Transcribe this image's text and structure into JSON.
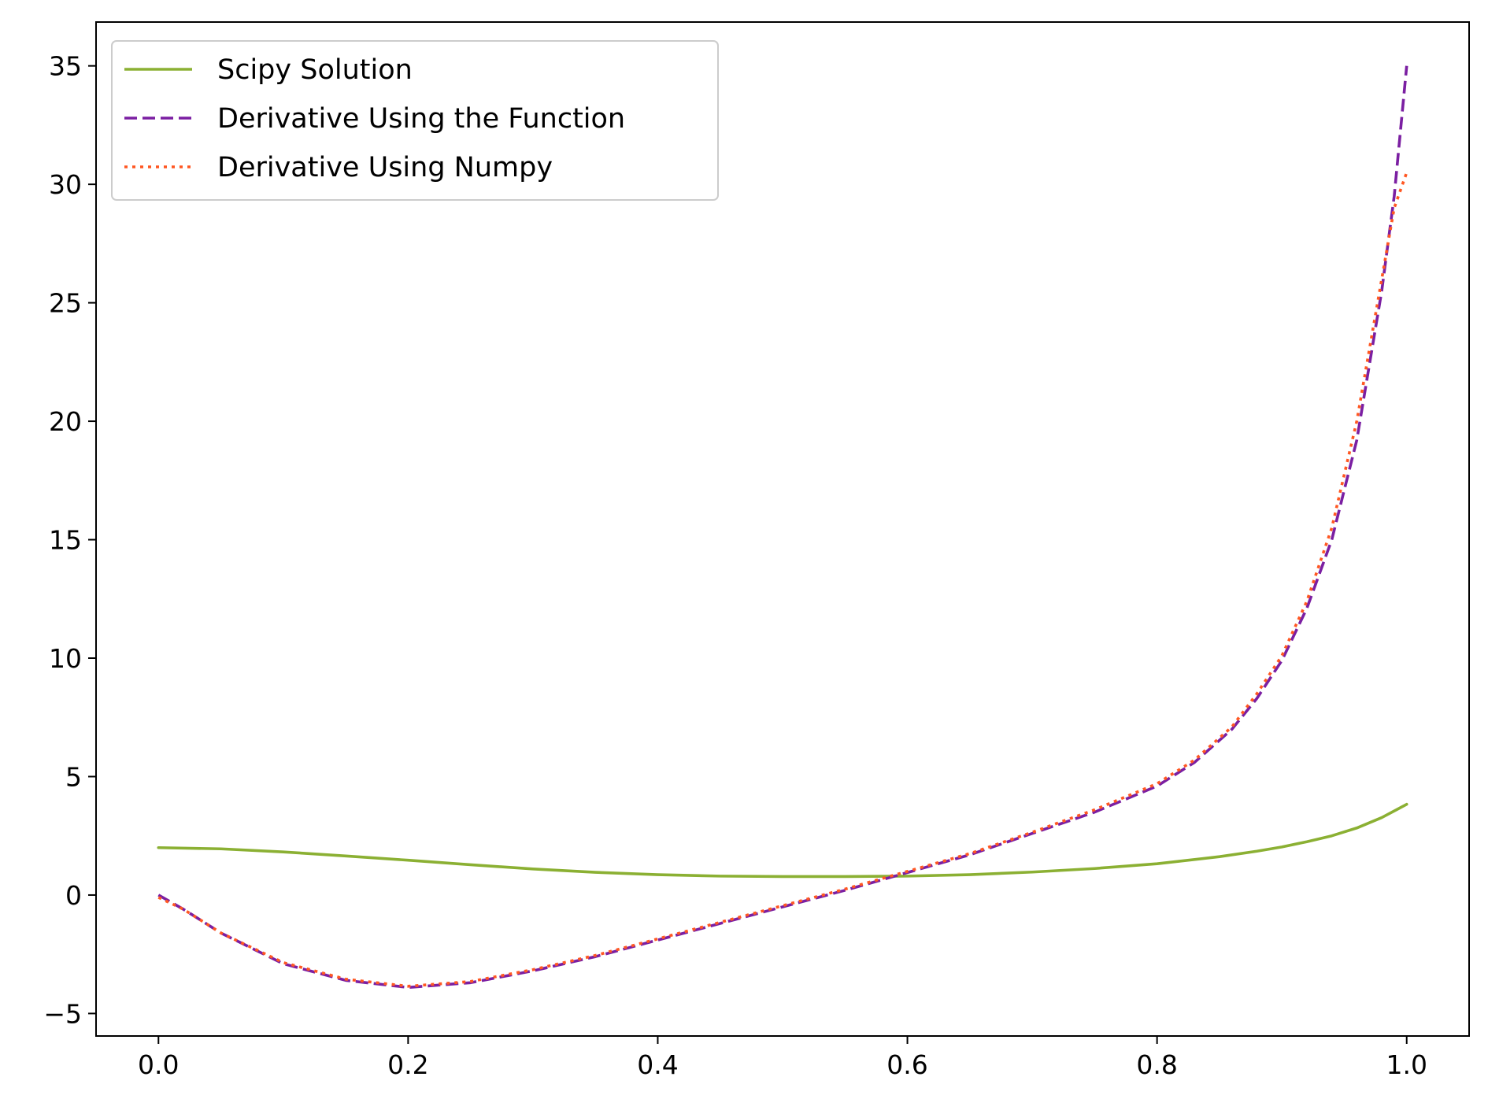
{
  "chart_data": {
    "type": "line",
    "title": "",
    "xlabel": "",
    "ylabel": "",
    "xlim": [
      -0.05,
      1.05
    ],
    "ylim": [
      -5.95,
      36.85
    ],
    "grid": false,
    "legend_position": "top-left",
    "xticks": [
      0.0,
      0.2,
      0.4,
      0.6,
      0.8,
      1.0
    ],
    "xtick_labels": [
      "0.0",
      "0.2",
      "0.4",
      "0.6",
      "0.8",
      "1.0"
    ],
    "yticks": [
      -5,
      0,
      5,
      10,
      15,
      20,
      25,
      30,
      35
    ],
    "ytick_labels": [
      "−5",
      "0",
      "5",
      "10",
      "15",
      "20",
      "25",
      "30",
      "35"
    ],
    "series": [
      {
        "name": "Scipy Solution",
        "color": "#8bb033",
        "style": "solid",
        "x": [
          0.0,
          0.05,
          0.1,
          0.15,
          0.2,
          0.25,
          0.3,
          0.35,
          0.4,
          0.45,
          0.5,
          0.55,
          0.6,
          0.65,
          0.7,
          0.75,
          0.8,
          0.85,
          0.88,
          0.9,
          0.92,
          0.94,
          0.96,
          0.98,
          1.0
        ],
        "y": [
          2.0,
          1.95,
          1.82,
          1.65,
          1.47,
          1.28,
          1.1,
          0.96,
          0.86,
          0.8,
          0.78,
          0.78,
          0.8,
          0.86,
          0.97,
          1.12,
          1.32,
          1.62,
          1.85,
          2.03,
          2.25,
          2.5,
          2.83,
          3.27,
          3.83
        ]
      },
      {
        "name": "Derivative Using the Function",
        "color": "#7b1fa2",
        "style": "dashed",
        "x": [
          0.0,
          0.02,
          0.05,
          0.1,
          0.15,
          0.2,
          0.25,
          0.3,
          0.35,
          0.4,
          0.45,
          0.5,
          0.55,
          0.6,
          0.65,
          0.7,
          0.75,
          0.8,
          0.83,
          0.86,
          0.88,
          0.9,
          0.92,
          0.94,
          0.96,
          0.98,
          0.99,
          1.0
        ],
        "y": [
          0.0,
          -0.6,
          -1.6,
          -2.9,
          -3.6,
          -3.9,
          -3.7,
          -3.2,
          -2.6,
          -1.9,
          -1.2,
          -0.5,
          0.2,
          0.95,
          1.7,
          2.6,
          3.5,
          4.6,
          5.6,
          7.0,
          8.3,
          9.9,
          12.1,
          15.0,
          19.2,
          25.5,
          29.5,
          35.0
        ]
      },
      {
        "name": "Derivative Using Numpy",
        "color": "#ff5722",
        "style": "dotted",
        "x": [
          0.0,
          0.02,
          0.05,
          0.1,
          0.15,
          0.2,
          0.25,
          0.3,
          0.35,
          0.4,
          0.45,
          0.5,
          0.55,
          0.6,
          0.65,
          0.7,
          0.75,
          0.8,
          0.83,
          0.86,
          0.88,
          0.9,
          0.92,
          0.94,
          0.96,
          0.98,
          0.99,
          1.0
        ],
        "y": [
          -0.1,
          -0.6,
          -1.6,
          -2.85,
          -3.55,
          -3.85,
          -3.65,
          -3.15,
          -2.55,
          -1.85,
          -1.15,
          -0.45,
          0.25,
          1.0,
          1.75,
          2.65,
          3.6,
          4.7,
          5.7,
          7.1,
          8.5,
          10.1,
          12.4,
          15.5,
          20.0,
          26.0,
          29.0,
          30.5
        ]
      }
    ]
  }
}
